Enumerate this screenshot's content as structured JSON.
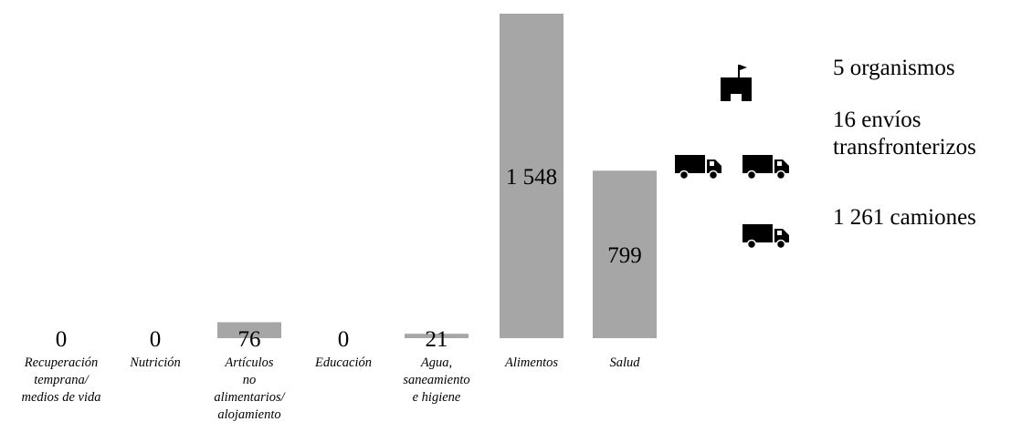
{
  "chart_data": {
    "type": "bar",
    "categories": [
      [
        "Recuperación",
        "temprana/",
        "medios de vida"
      ],
      [
        "Nutrición"
      ],
      [
        "Artículos",
        "no",
        "alimentarios/",
        "alojamiento"
      ],
      [
        "Educación"
      ],
      [
        "Agua,",
        "saneamiento",
        "e higiene"
      ],
      [
        "Alimentos"
      ],
      [
        "Salud"
      ]
    ],
    "values": [
      0,
      0,
      76,
      0,
      21,
      1548,
      799
    ],
    "value_labels": [
      "0",
      "0",
      "76",
      "0",
      "21",
      "1 548",
      "799"
    ],
    "ylim": [
      0,
      1548
    ],
    "bar_color": "#a6a6a6",
    "title": "",
    "xlabel": "",
    "ylabel": ""
  },
  "summary": {
    "organizations": "5 organismos",
    "shipments_line1": "16 envíos",
    "shipments_line2": "transfronterizos",
    "trucks": "1 261 camiones"
  },
  "icons": [
    "building-flag-icon",
    "truck-icon",
    "truck-icon",
    "truck-icon"
  ]
}
